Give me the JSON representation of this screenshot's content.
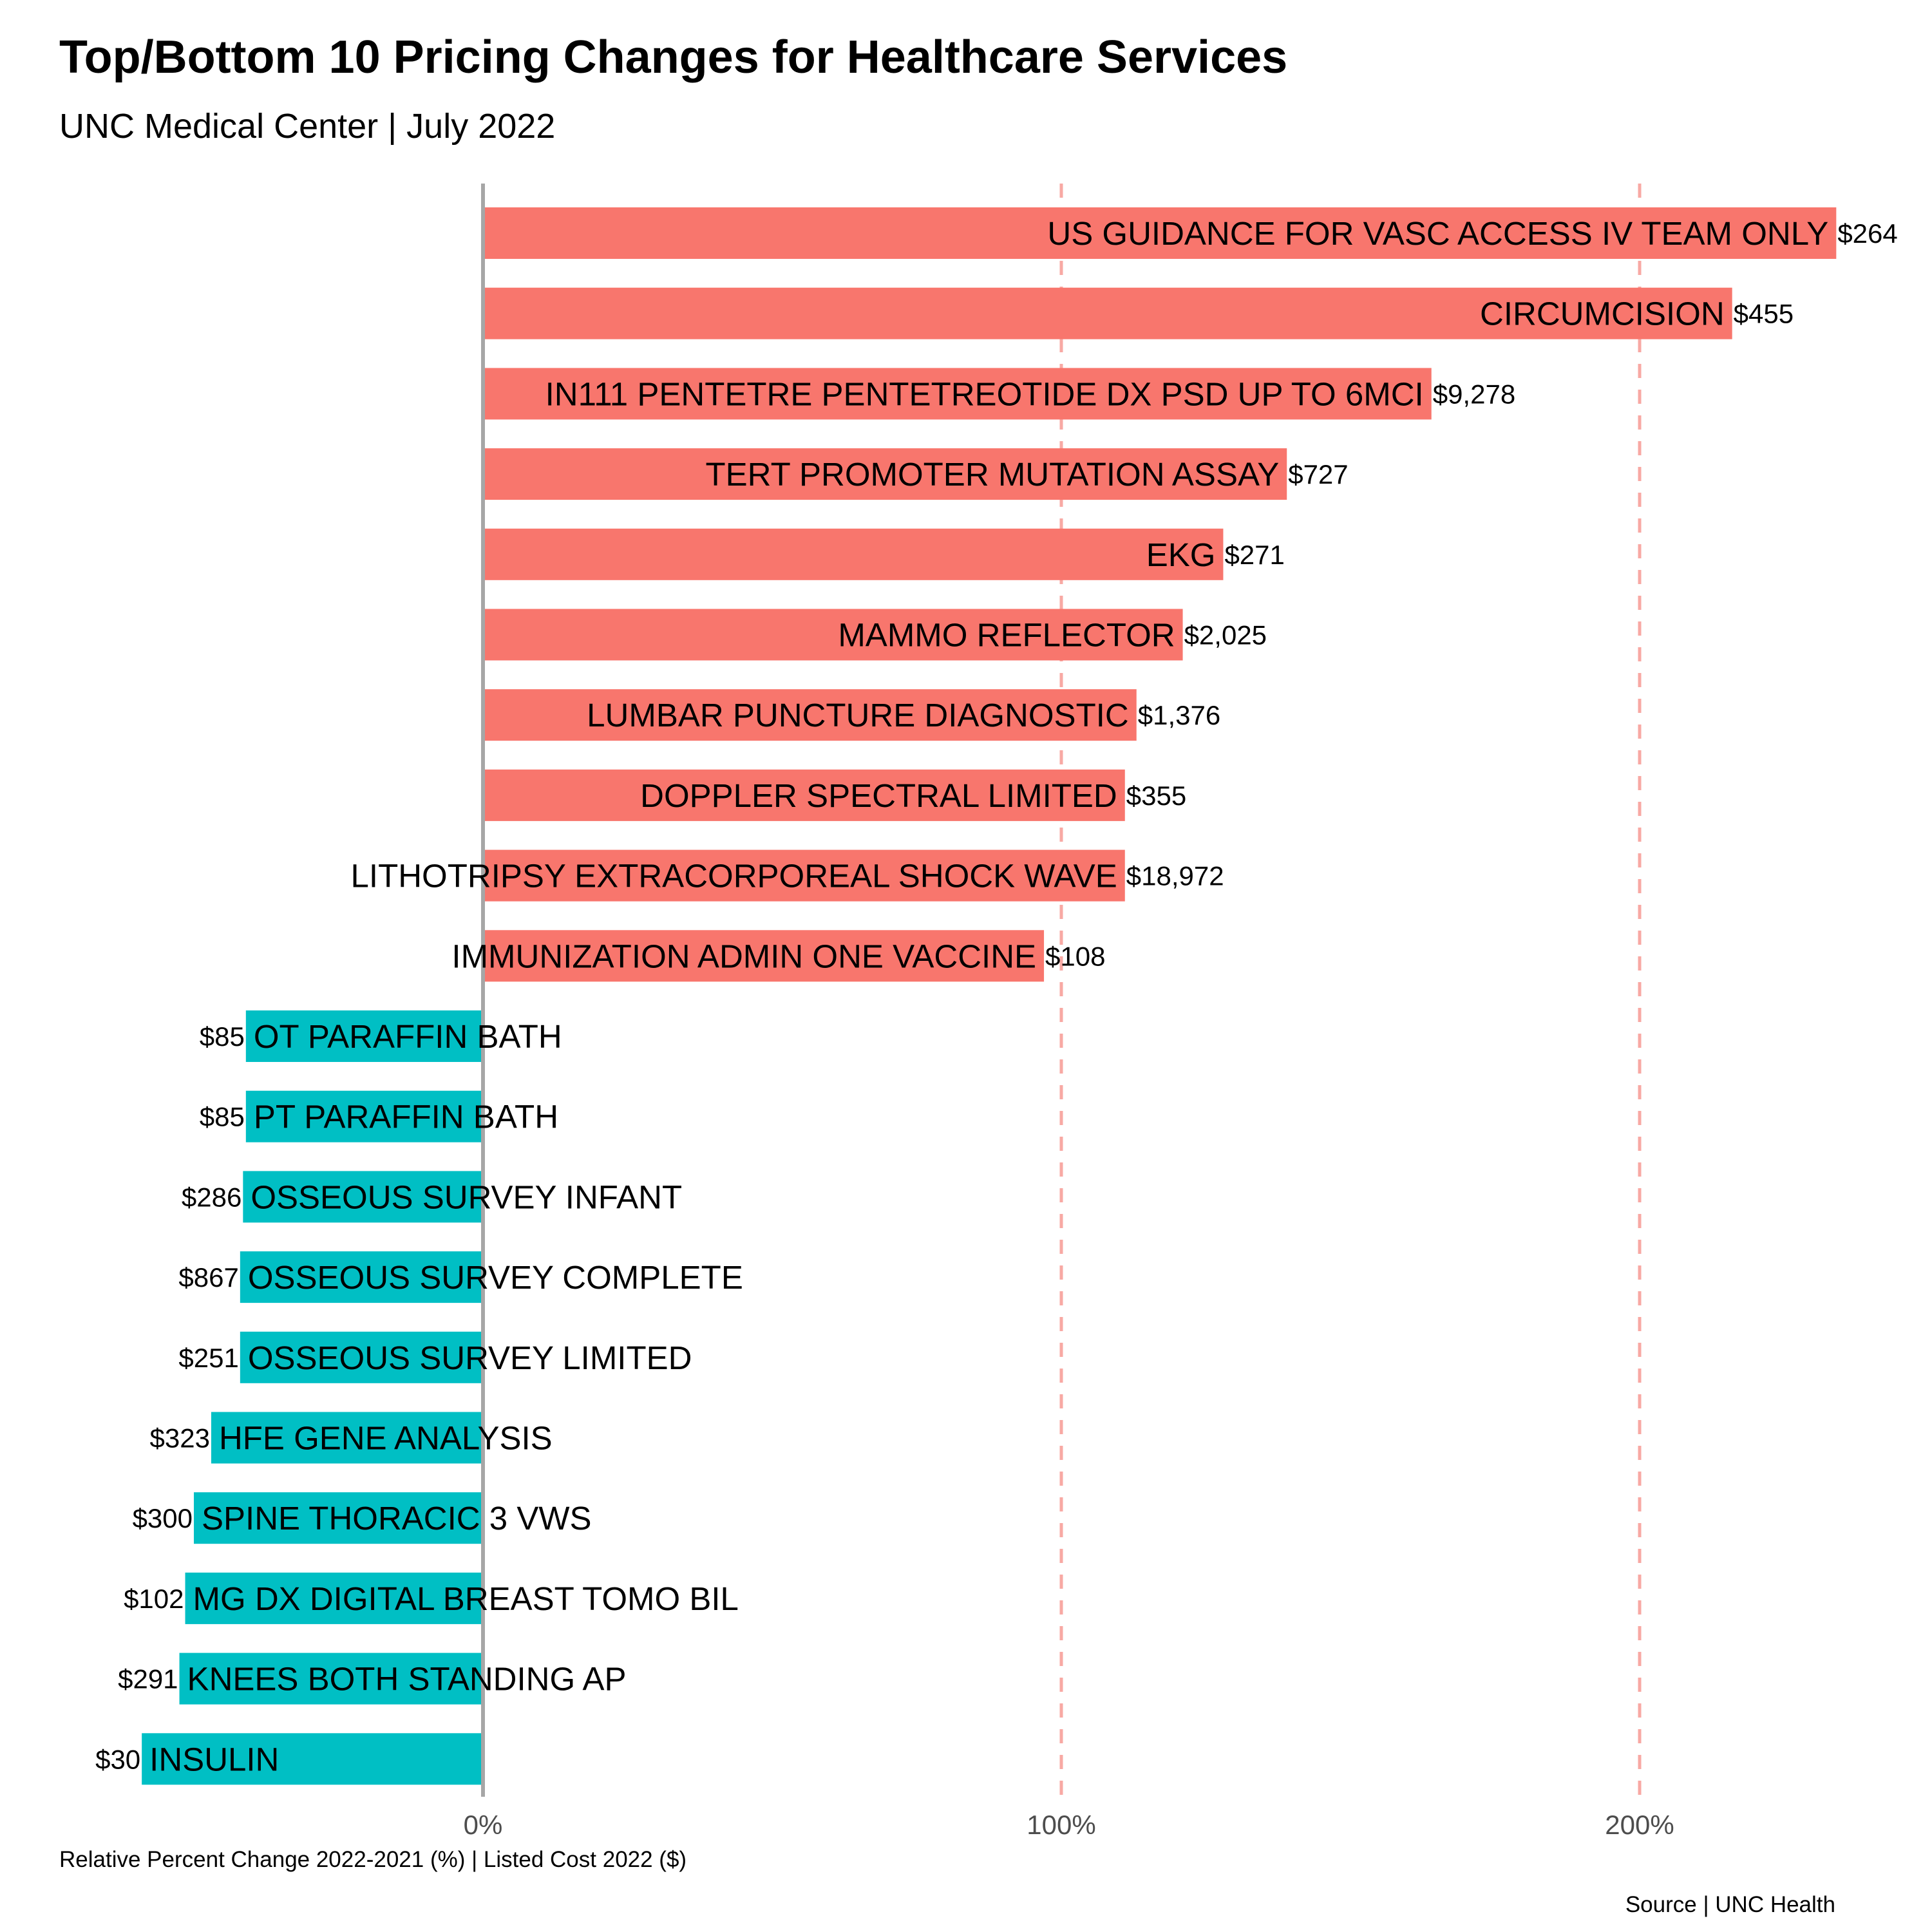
{
  "title": "Top/Bottom 10 Pricing Changes for Healthcare Services",
  "subtitle": "UNC Medical Center | July 2022",
  "x_caption": "Relative Percent Change 2022-2021 (%) | Listed Cost 2022 ($)",
  "source": "Source | UNC Health",
  "chart_data": {
    "type": "bar",
    "orientation": "horizontal",
    "xlim": [
      -60,
      235
    ],
    "x_ticks": [
      0,
      100,
      200
    ],
    "x_tick_labels": [
      "0%",
      "100%",
      "200%"
    ],
    "grid": "dashed vertical lines at 100% and 200%",
    "colors": {
      "increase": "#F8766D",
      "decrease": "#00BFC4",
      "grid": "#F8A9A4",
      "zero_line": "#A6A6A6"
    },
    "bars": [
      {
        "label": "US GUIDANCE FOR VASC ACCESS IV TEAM ONLY",
        "pct_change": 234,
        "cost": "$264"
      },
      {
        "label": "CIRCUMCISION",
        "pct_change": 216,
        "cost": "$455"
      },
      {
        "label": "IN111 PENTETRE PENTETREOTIDE DX PSD UP TO 6MCI",
        "pct_change": 164,
        "cost": "$9,278"
      },
      {
        "label": "TERT PROMOTER MUTATION ASSAY",
        "pct_change": 139,
        "cost": "$727"
      },
      {
        "label": "EKG",
        "pct_change": 128,
        "cost": "$271"
      },
      {
        "label": "MAMMO REFLECTOR",
        "pct_change": 121,
        "cost": "$2,025"
      },
      {
        "label": "LUMBAR PUNCTURE DIAGNOSTIC",
        "pct_change": 113,
        "cost": "$1,376"
      },
      {
        "label": "DOPPLER SPECTRAL LIMITED",
        "pct_change": 111,
        "cost": "$355"
      },
      {
        "label": "LITHOTRIPSY EXTRACORPOREAL SHOCK WAVE",
        "pct_change": 111,
        "cost": "$18,972"
      },
      {
        "label": "IMMUNIZATION ADMIN ONE VACCINE",
        "pct_change": 97,
        "cost": "$108"
      },
      {
        "label": "OT PARAFFIN BATH",
        "pct_change": -41,
        "cost": "$85"
      },
      {
        "label": "PT PARAFFIN BATH",
        "pct_change": -41,
        "cost": "$85"
      },
      {
        "label": "OSSEOUS SURVEY INFANT",
        "pct_change": -41.5,
        "cost": "$286"
      },
      {
        "label": "OSSEOUS SURVEY COMPLETE",
        "pct_change": -42,
        "cost": "$867"
      },
      {
        "label": "OSSEOUS SURVEY LIMITED",
        "pct_change": -42,
        "cost": "$251"
      },
      {
        "label": "HFE GENE ANALYSIS",
        "pct_change": -47,
        "cost": "$323"
      },
      {
        "label": "SPINE THORACIC 3 VWS",
        "pct_change": -50,
        "cost": "$300"
      },
      {
        "label": "MG DX DIGITAL BREAST TOMO BIL",
        "pct_change": -51.5,
        "cost": "$102"
      },
      {
        "label": "KNEES BOTH STANDING AP",
        "pct_change": -52.5,
        "cost": "$291"
      },
      {
        "label": "INSULIN",
        "pct_change": -59,
        "cost": "$30"
      }
    ]
  }
}
